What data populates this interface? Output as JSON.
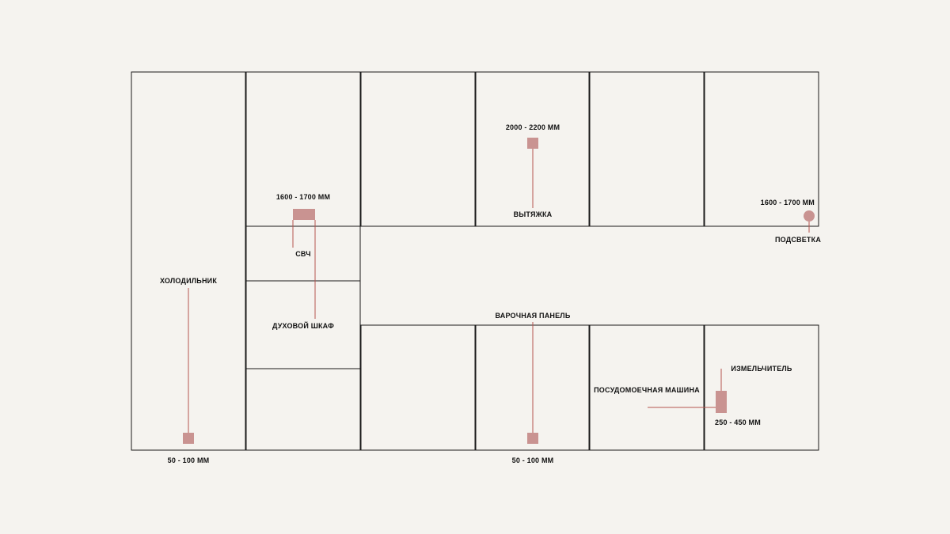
{
  "colors": {
    "background": "#f5f3ef",
    "cabinet_outline": "#1a1a1a",
    "marker": "#c99391",
    "leader_line": "#b5544f"
  },
  "labels": {
    "fridge": "ХОЛОДИЛЬНИК",
    "fridge_height": "50 - 100 ММ",
    "microwave_height": "1600 - 1700 ММ",
    "microwave": "СВЧ",
    "oven": "ДУХОВОЙ ШКАФ",
    "hood_height": "2000 - 2200 ММ",
    "hood": "ВЫТЯЖКА",
    "lighting_height": "1600 - 1700 ММ",
    "lighting": "ПОДСВЕТКА",
    "cooktop": "ВАРОЧНАЯ ПАНЕЛЬ",
    "cooktop_height": "50 - 100 ММ",
    "dishwasher": "ПОСУДОМОЕЧНАЯ МАШИНА",
    "disposer": "ИЗМЕЛЬЧИТЕЛЬ",
    "disposer_height": "250 - 450 ММ"
  }
}
